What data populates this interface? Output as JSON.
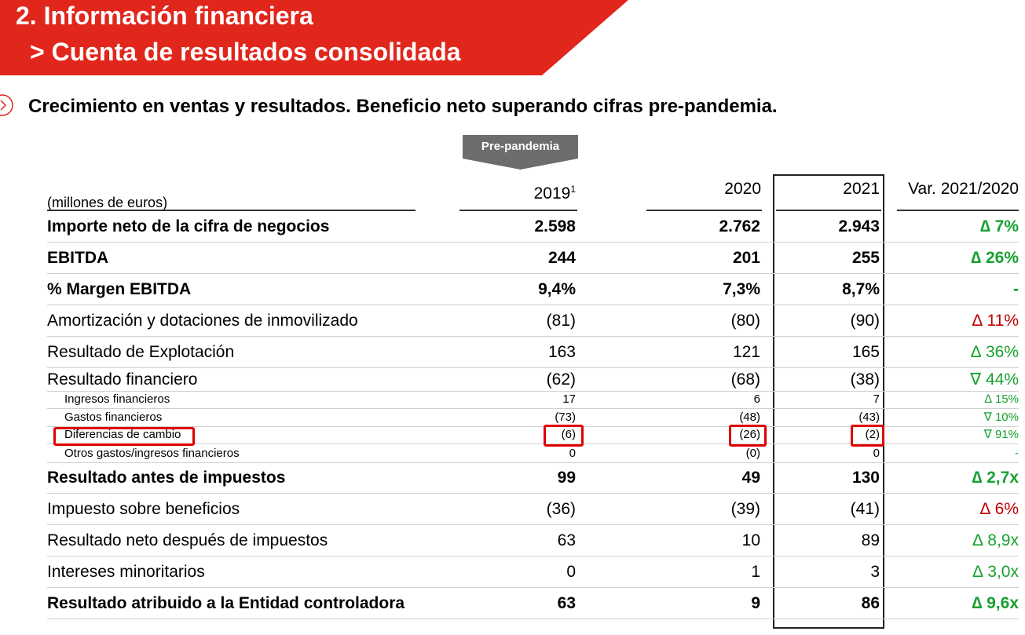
{
  "header": {
    "title_line1": "2. Información financiera",
    "title_line2": "> Cuenta de resultados consolidada",
    "subtitle": "Crecimiento en ventas y resultados. Beneficio neto superando cifras pre-pandemia.",
    "pre_pandemia": "Pre-pandemia"
  },
  "colors": {
    "brand_red": "#e1261c",
    "positive": "#17a130",
    "negative": "#c00000",
    "highlight": "#e00000"
  },
  "table": {
    "unit_label": "(millones de euros)",
    "columns": {
      "y2019": "2019",
      "y2019_footnote": "1",
      "y2020": "2020",
      "y2021": "2021",
      "var": "Var. 2021/2020"
    },
    "rows": [
      {
        "label": "Importe neto de la cifra de negocios",
        "v2019": "2.598",
        "v2020": "2.762",
        "v2021": "2.943",
        "var": "∆ 7%",
        "var_color": "green",
        "style": "bold"
      },
      {
        "label": "EBITDA",
        "v2019": "244",
        "v2020": "201",
        "v2021": "255",
        "var": "∆ 26%",
        "var_color": "green",
        "style": "bold"
      },
      {
        "label": "% Margen EBITDA",
        "v2019": "9,4%",
        "v2020": "7,3%",
        "v2021": "8,7%",
        "var": "-",
        "var_color": "green",
        "style": "bold"
      },
      {
        "label": "Amortización y dotaciones de inmovilizado",
        "v2019": "(81)",
        "v2020": "(80)",
        "v2021": "(90)",
        "var": "∆ 11%",
        "var_color": "red",
        "style": "normal"
      },
      {
        "label": "Resultado de Explotación",
        "v2019": "163",
        "v2020": "121",
        "v2021": "165",
        "var": "∆ 36%",
        "var_color": "green",
        "style": "normal"
      },
      {
        "label": "Resultado financiero",
        "v2019": "(62)",
        "v2020": "(68)",
        "v2021": "(38)",
        "var": "∇ 44%",
        "var_color": "green",
        "style": "normal"
      },
      {
        "label": "Ingresos financieros",
        "v2019": "17",
        "v2020": "6",
        "v2021": "7",
        "var": "∆ 15%",
        "var_color": "green",
        "style": "small"
      },
      {
        "label": "Gastos financieros",
        "v2019": "(73)",
        "v2020": "(48)",
        "v2021": "(43)",
        "var": "∇ 10%",
        "var_color": "green",
        "style": "small"
      },
      {
        "label": "Diferencias de cambio",
        "v2019": "(6)",
        "v2020": "(26)",
        "v2021": "(2)",
        "var": "∇ 91%",
        "var_color": "green",
        "style": "small",
        "highlighted": true
      },
      {
        "label": "Otros gastos/ingresos financieros",
        "v2019": "0",
        "v2020": "(0)",
        "v2021": "0",
        "var": "-",
        "var_color": "green",
        "style": "small"
      },
      {
        "label": "Resultado antes de impuestos",
        "v2019": "99",
        "v2020": "49",
        "v2021": "130",
        "var": "∆ 2,7x",
        "var_color": "green",
        "style": "bold"
      },
      {
        "label": "Impuesto sobre beneficios",
        "v2019": "(36)",
        "v2020": "(39)",
        "v2021": "(41)",
        "var": "∆ 6%",
        "var_color": "red",
        "style": "normal"
      },
      {
        "label": "Resultado neto después de impuestos",
        "v2019": "63",
        "v2020": "10",
        "v2021": "89",
        "var": "∆ 8,9x",
        "var_color": "green",
        "style": "normal"
      },
      {
        "label": "Intereses minoritarios",
        "v2019": "0",
        "v2020": "1",
        "v2021": "3",
        "var": "∆ 3,0x",
        "var_color": "green",
        "style": "normal"
      },
      {
        "label": "Resultado atribuido a la Entidad controladora",
        "v2019": "63",
        "v2020": "9",
        "v2021": "86",
        "var": "∆ 9,6x",
        "var_color": "green",
        "style": "bold"
      }
    ]
  }
}
